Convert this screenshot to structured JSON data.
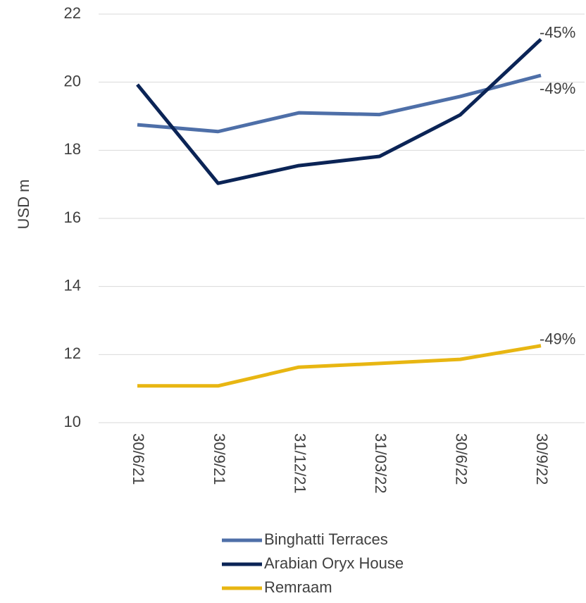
{
  "chart_data": {
    "type": "line",
    "y_label": "USD m",
    "categories": [
      "30/6/21",
      "30/9/21",
      "31/12/21",
      "31/03/22",
      "30/6/22",
      "30/9/22"
    ],
    "series": [
      {
        "name": "Binghatti Terraces",
        "color": "#4e6fa8",
        "values": [
          18.75,
          18.55,
          19.1,
          19.05,
          19.58,
          20.2
        ],
        "end_label": "-49%"
      },
      {
        "name": "Arabian Oryx House",
        "color": "#0b2456",
        "values": [
          19.93,
          17.03,
          17.55,
          17.82,
          19.04,
          21.26
        ],
        "end_label": "-45%"
      },
      {
        "name": "Remraam",
        "color": "#e8b612",
        "values": [
          11.08,
          11.08,
          11.63,
          11.74,
          11.86,
          12.26
        ],
        "end_label": "-49%"
      }
    ],
    "ylim": [
      10,
      22
    ],
    "yticks": [
      10,
      12,
      14,
      16,
      18,
      20,
      22
    ],
    "grid": true,
    "legend": "bottom"
  }
}
